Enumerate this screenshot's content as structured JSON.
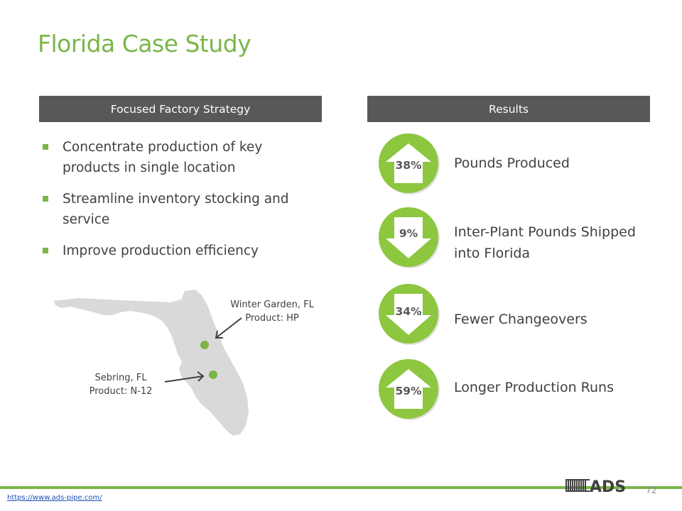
{
  "title": "Florida Case Study",
  "left_header": "Focused Factory Strategy",
  "right_header": "Results",
  "bullets": [
    "Concentrate production of key products in single location",
    "Streamline inventory stocking and service",
    "Improve production efficiency"
  ],
  "results": [
    {
      "percent": "38%",
      "direction": "up",
      "label": "Pounds Produced"
    },
    {
      "percent": "9%",
      "direction": "down",
      "label": "Inter-Plant Pounds Shipped into Florida"
    },
    {
      "percent": "34%",
      "direction": "down",
      "label": "Fewer Changeovers"
    },
    {
      "percent": "59%",
      "direction": "up",
      "label": "Longer Production Runs"
    }
  ],
  "map": {
    "callout_winter_garden": {
      "line1": "Winter Garden, FL",
      "line2": "Product: HP"
    },
    "callout_sebring": {
      "line1": "Sebring, FL",
      "line2": "Product: N-12"
    }
  },
  "footer": {
    "link": "https://www.ads-pipe.com/",
    "page_number": "72",
    "logo_text": "ADS"
  },
  "colors": {
    "accent_green": "#7ab648",
    "header_gray": "#58585a",
    "map_gray": "#d9d9d9",
    "circle_green": "#8dc63f"
  }
}
